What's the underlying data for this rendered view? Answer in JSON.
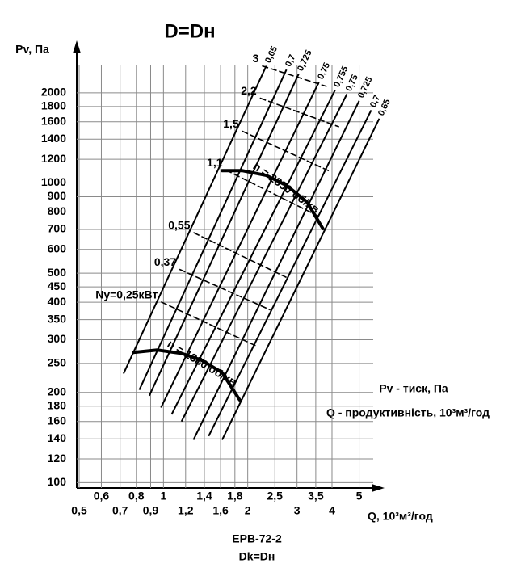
{
  "chart_data": {
    "type": "line",
    "title": "D=Dн",
    "y_label": "Pv, Па",
    "x_label": "Q, 10³м³/год",
    "legend_notes": [
      "Pv - тиск, Па",
      "Q - продуктивність, 10³м³/год"
    ],
    "footer": [
      "ЕРВ-72-2",
      "Dk=Dн"
    ],
    "xscale": "log",
    "yscale": "log",
    "grid": true,
    "color": "#000000",
    "xlim": [
      0.49,
      6
    ],
    "ylim": [
      96,
      2900
    ],
    "xticks": [
      {
        "value": 0.5,
        "label": "0,5"
      },
      {
        "value": 0.6,
        "label": "0,6"
      },
      {
        "value": 0.7,
        "label": "0,7"
      },
      {
        "value": 0.8,
        "label": "0,8"
      },
      {
        "value": 0.9,
        "label": "0,9"
      },
      1,
      {
        "value": 1.2,
        "label": "1,2"
      },
      {
        "value": 1.4,
        "label": "1,4"
      },
      {
        "value": 1.6,
        "label": "1,6"
      },
      {
        "value": 1.8,
        "label": "1,8"
      },
      2,
      {
        "value": 2.5,
        "label": "2,5"
      },
      3,
      {
        "value": 3.5,
        "label": "3,5"
      },
      4,
      5
    ],
    "yticks": [
      100,
      120,
      140,
      160,
      180,
      200,
      250,
      300,
      350,
      400,
      450,
      500,
      600,
      700,
      800,
      900,
      1000,
      1200,
      1400,
      1600,
      1800,
      2000
    ],
    "series": [
      {
        "name": "n = 2850 об/хв",
        "x": [
          1.62,
          1.91,
          2.33,
          2.75,
          3.25,
          3.71
        ],
        "values": [
          1100,
          1100,
          1060,
          982,
          866,
          704
        ]
      },
      {
        "name": "n = 1380 об/хв",
        "x": [
          0.78,
          0.95,
          1.16,
          1.37,
          1.62,
          1.87
        ],
        "values": [
          272,
          277,
          270,
          256,
          233,
          189
        ]
      }
    ],
    "efficiency_lines": [
      {
        "label": "0,65",
        "x": [
          0.72,
          2.33
        ],
        "y": [
          231,
          2460
        ]
      },
      {
        "label": "0,7",
        "x": [
          0.82,
          2.75
        ],
        "y": [
          204,
          2390
        ]
      },
      {
        "label": "0,725",
        "x": [
          0.89,
          3.04
        ],
        "y": [
          195,
          2310
        ]
      },
      {
        "label": "0,75",
        "x": [
          0.98,
          3.59
        ],
        "y": [
          178,
          2170
        ]
      },
      {
        "label": "0,755",
        "x": [
          1.07,
          4.1
        ],
        "y": [
          169,
          2040
        ]
      },
      {
        "label": "0,75",
        "x": [
          1.16,
          4.52
        ],
        "y": [
          160,
          1980
        ]
      },
      {
        "label": "0,725",
        "x": [
          1.28,
          5.0
        ],
        "y": [
          139,
          1880
        ]
      },
      {
        "label": "0,7",
        "x": [
          1.45,
          5.52
        ],
        "y": [
          143,
          1750
        ]
      },
      {
        "label": "0,65",
        "x": [
          1.62,
          5.9
        ],
        "y": [
          139,
          1640
        ]
      }
    ],
    "power_lines": [
      {
        "label": "3",
        "x": [
          2.25,
          3.83
        ],
        "y": [
          2460,
          2100
        ]
      },
      {
        "label": "2,2",
        "x": [
          2.21,
          4.24
        ],
        "y": [
          1920,
          1540
        ]
      },
      {
        "label": "1,5",
        "x": [
          1.91,
          3.96
        ],
        "y": [
          1490,
          1090
        ]
      },
      {
        "label": "1,1",
        "x": [
          1.67,
          3.59
        ],
        "y": [
          1105,
          774
        ]
      },
      {
        "label": "0,55",
        "x": [
          1.28,
          2.75
        ],
        "y": [
          683,
          484
        ]
      },
      {
        "label": "0,37",
        "x": [
          1.14,
          2.41
        ],
        "y": [
          515,
          377
        ]
      },
      {
        "label": "Ny=0,25кВт",
        "x": [
          0.98,
          2.18
        ],
        "y": [
          401,
          284
        ]
      }
    ]
  }
}
